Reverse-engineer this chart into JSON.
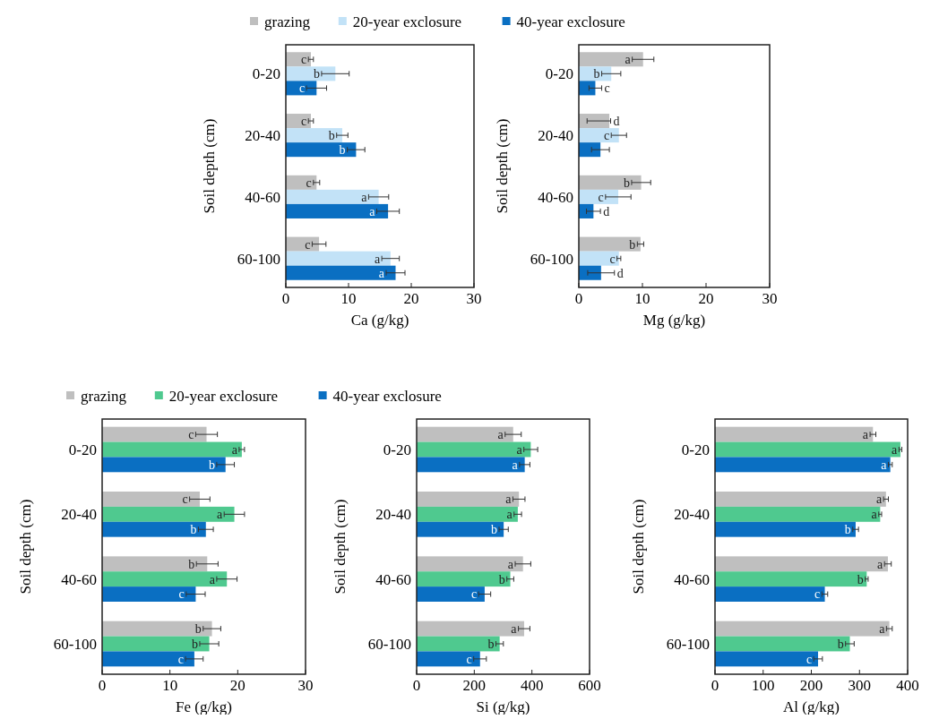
{
  "chart_data": [
    {
      "type": "bar",
      "orientation": "horizontal",
      "categories": [
        "0-20",
        "20-40",
        "40-60",
        "60-100"
      ],
      "xlabel": "Ca (g/kg)",
      "ylabel": "Soil depth (cm)",
      "xlim": [
        0,
        30
      ],
      "xticks": [
        0,
        10,
        20,
        30
      ],
      "legend": "top",
      "series": [
        {
          "name": "grazing",
          "color": "#bfbfbf",
          "values": [
            4.0,
            4.0,
            4.9,
            5.3
          ],
          "errors": [
            0.4,
            0.4,
            0.5,
            1.1
          ],
          "value_labels": [
            "c",
            "c",
            "c",
            "c"
          ]
        },
        {
          "name": "20-year exclosure",
          "color": "#c2e2f7",
          "values": [
            7.9,
            9.0,
            14.8,
            16.7
          ],
          "errors": [
            2.2,
            0.9,
            1.6,
            1.4
          ],
          "value_labels": [
            "b",
            "b",
            "a",
            "a"
          ]
        },
        {
          "name": "40-year exclosure",
          "color": "#0a6fc2",
          "values": [
            4.9,
            11.2,
            16.3,
            17.5
          ],
          "errors": [
            1.6,
            1.4,
            1.8,
            1.5
          ],
          "value_labels": [
            "c",
            "b",
            "a",
            "a"
          ]
        }
      ]
    },
    {
      "type": "bar",
      "orientation": "horizontal",
      "categories": [
        "0-20",
        "20-40",
        "40-60",
        "60-100"
      ],
      "xlabel": "Mg (g/kg)",
      "ylabel": "Soil depth (cm)",
      "xlim": [
        0,
        30
      ],
      "xticks": [
        0,
        10,
        20,
        30
      ],
      "series": [
        {
          "color": "#bfbfbf",
          "values": [
            10.1,
            4.8,
            9.8,
            9.7
          ],
          "errors": [
            1.7,
            [
              1.3,
              5.0
            ],
            1.5,
            0.5
          ],
          "value_labels": [
            "a",
            "d",
            "b",
            "b"
          ]
        },
        {
          "color": "#c2e2f7",
          "values": [
            5.1,
            6.3,
            6.2,
            6.3
          ],
          "errors": [
            1.5,
            1.2,
            2.0,
            0.3
          ],
          "value_labels": [
            "b",
            "c",
            "c",
            "c"
          ]
        },
        {
          "color": "#0a6fc2",
          "values": [
            2.6,
            3.4,
            2.3,
            3.5
          ],
          "errors": [
            1.0,
            1.4,
            1.1,
            2.1
          ],
          "value_labels": [
            "c",
            null,
            "d",
            "d"
          ]
        }
      ]
    },
    {
      "type": "bar",
      "orientation": "horizontal",
      "categories": [
        "0-20",
        "20-40",
        "40-60",
        "60-100"
      ],
      "xlabel": "Fe (g/kg)",
      "ylabel": "Soil depth (cm)",
      "xlim": [
        0,
        30
      ],
      "xticks": [
        0,
        10,
        20,
        30
      ],
      "legend": "top",
      "series": [
        {
          "name": "grazing",
          "color": "#bfbfbf",
          "values": [
            15.4,
            14.4,
            15.5,
            16.2
          ],
          "errors": [
            1.6,
            1.5,
            1.6,
            1.3
          ],
          "value_labels": [
            "c",
            "c",
            "b",
            "b"
          ]
        },
        {
          "name": "20-year exclosure",
          "color": "#4fc98f",
          "values": [
            20.6,
            19.5,
            18.4,
            15.8
          ],
          "errors": [
            0.4,
            1.5,
            1.5,
            1.4
          ],
          "value_labels": [
            "a",
            "a",
            "a",
            "b"
          ]
        },
        {
          "name": "40-year exclosure",
          "color": "#0a6fc2",
          "values": [
            18.2,
            15.3,
            13.8,
            13.6
          ],
          "errors": [
            1.3,
            1.1,
            1.4,
            1.3
          ],
          "value_labels": [
            "b",
            "b",
            "c",
            "c"
          ]
        }
      ]
    },
    {
      "type": "bar",
      "orientation": "horizontal",
      "categories": [
        "0-20",
        "20-40",
        "40-60",
        "60-100"
      ],
      "xlabel": "Si (g/kg)",
      "ylabel": "Soil depth (cm)",
      "xlim": [
        0,
        600
      ],
      "xticks": [
        0,
        200,
        400,
        600
      ],
      "series": [
        {
          "color": "#bfbfbf",
          "values": [
            335,
            355,
            369,
            373
          ],
          "errors": [
            28,
            21,
            27,
            20
          ],
          "value_labels": [
            "a",
            "a",
            "a",
            "a"
          ]
        },
        {
          "color": "#4fc98f",
          "values": [
            396,
            351,
            325,
            288
          ],
          "errors": [
            24,
            13,
            12,
            13
          ],
          "value_labels": [
            "a",
            "a",
            "b",
            "b"
          ]
        },
        {
          "color": "#0a6fc2",
          "values": [
            375,
            302,
            236,
            220
          ],
          "errors": [
            18,
            16,
            21,
            22
          ],
          "value_labels": [
            "a",
            "b",
            "c",
            "c"
          ]
        }
      ]
    },
    {
      "type": "bar",
      "orientation": "horizontal",
      "categories": [
        "0-20",
        "20-40",
        "40-60",
        "60-100"
      ],
      "xlabel": "Al (g/kg)",
      "ylabel": "Soil depth (cm)",
      "xlim": [
        0,
        400
      ],
      "xticks": [
        0,
        100,
        200,
        300,
        400
      ],
      "series": [
        {
          "color": "#bfbfbf",
          "values": [
            328,
            355,
            359,
            362
          ],
          "errors": [
            6,
            5,
            7,
            6
          ],
          "value_labels": [
            "a",
            "a",
            "a",
            "a"
          ]
        },
        {
          "color": "#4fc98f",
          "values": [
            385,
            343,
            315,
            280
          ],
          "errors": [
            3,
            3,
            3,
            9
          ],
          "value_labels": [
            "a",
            "a",
            "b",
            "b"
          ]
        },
        {
          "color": "#0a6fc2",
          "values": [
            364,
            292,
            228,
            214
          ],
          "errors": [
            4,
            6,
            6,
            9
          ],
          "value_labels": [
            "a",
            "b",
            "c",
            "c"
          ]
        }
      ]
    }
  ]
}
